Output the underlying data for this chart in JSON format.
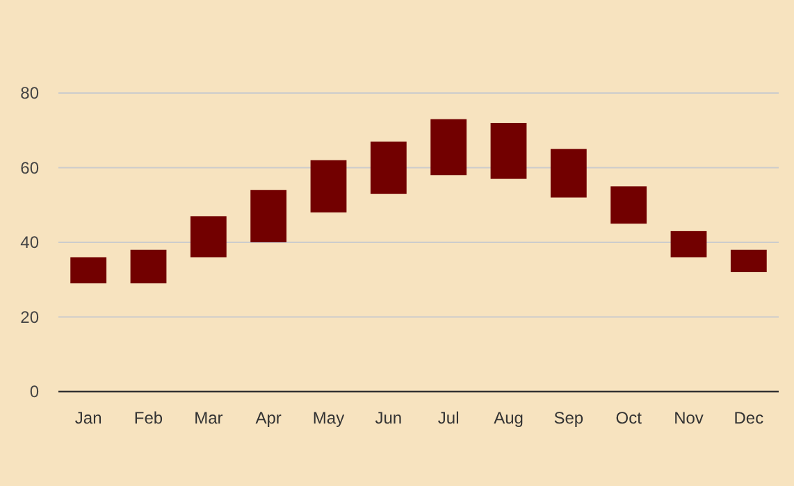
{
  "chart_data": {
    "type": "bar",
    "categories": [
      "Jan",
      "Feb",
      "Mar",
      "Apr",
      "May",
      "Jun",
      "Jul",
      "Aug",
      "Sep",
      "Oct",
      "Nov",
      "Dec"
    ],
    "base": [
      29,
      29,
      36,
      40,
      48,
      53,
      58,
      57,
      52,
      45,
      36,
      32
    ],
    "values": [
      7,
      9,
      11,
      14,
      14,
      14,
      15,
      15,
      13,
      10,
      7,
      6
    ],
    "color": "#720000",
    "ylim": [
      0,
      80
    ],
    "yticks": [
      0,
      20,
      40,
      60,
      80
    ],
    "grid": "y"
  }
}
